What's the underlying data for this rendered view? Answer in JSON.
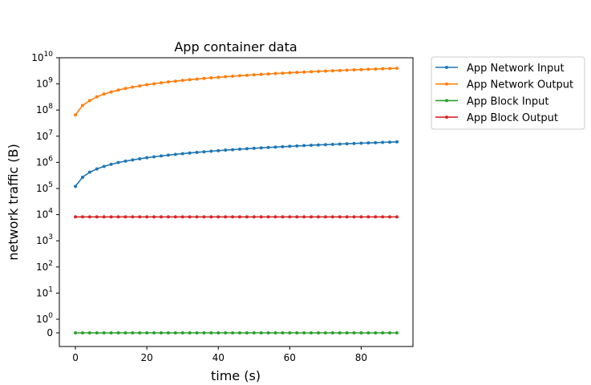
{
  "chart_data": {
    "type": "line",
    "title": "App container data",
    "xlabel": "time (s)",
    "ylabel": "network traffic (B)",
    "xlim": [
      -4.5,
      94.5
    ],
    "x_ticks": [
      0,
      20,
      40,
      60,
      80
    ],
    "y_scale": "symlog",
    "y_ticks": [
      {
        "value": 0,
        "base": "0",
        "exp": ""
      },
      {
        "value": 1,
        "base": "10",
        "exp": "0"
      },
      {
        "value": 10,
        "base": "10",
        "exp": "1"
      },
      {
        "value": 100,
        "base": "10",
        "exp": "2"
      },
      {
        "value": 1000,
        "base": "10",
        "exp": "3"
      },
      {
        "value": 10000,
        "base": "10",
        "exp": "4"
      },
      {
        "value": 100000,
        "base": "10",
        "exp": "5"
      },
      {
        "value": 1000000,
        "base": "10",
        "exp": "6"
      },
      {
        "value": 10000000,
        "base": "10",
        "exp": "7"
      },
      {
        "value": 100000000,
        "base": "10",
        "exp": "8"
      },
      {
        "value": 1000000000,
        "base": "10",
        "exp": "9"
      },
      {
        "value": 10000000000,
        "base": "10",
        "exp": "10"
      }
    ],
    "grid": false,
    "legend_position": "outside top-right",
    "x": [
      0,
      2,
      4,
      6,
      8,
      10,
      12,
      14,
      16,
      18,
      20,
      22,
      24,
      26,
      28,
      30,
      32,
      34,
      36,
      38,
      40,
      42,
      44,
      46,
      48,
      50,
      52,
      54,
      56,
      58,
      60,
      62,
      64,
      66,
      68,
      70,
      72,
      74,
      76,
      78,
      80,
      82,
      84,
      86,
      88,
      90
    ],
    "series": [
      {
        "name": "App Network Input",
        "color": "#1f77b4",
        "values": [
          120000,
          270000,
          420000,
          560000,
          700000,
          840000,
          980000,
          1110000,
          1240000,
          1370000,
          1500000,
          1630000,
          1760000,
          1890000,
          2020000,
          2150000,
          2280000,
          2410000,
          2540000,
          2670000,
          2800000,
          2930000,
          3060000,
          3190000,
          3320000,
          3450000,
          3580000,
          3710000,
          3840000,
          3970000,
          4100000,
          4230000,
          4360000,
          4490000,
          4620000,
          4750000,
          4880000,
          5010000,
          5140000,
          5270000,
          5400000,
          5530000,
          5660000,
          5790000,
          5920000,
          6050000
        ]
      },
      {
        "name": "App Network Output",
        "color": "#ff7f0e",
        "values": [
          65000000,
          150000000,
          230000000,
          320000000,
          410000000,
          490000000,
          580000000,
          670000000,
          750000000,
          840000000,
          930000000,
          1010000000,
          1100000000,
          1190000000,
          1270000000,
          1360000000,
          1450000000,
          1530000000,
          1620000000,
          1710000000,
          1790000000,
          1880000000,
          1970000000,
          2050000000,
          2140000000,
          2230000000,
          2310000000,
          2400000000,
          2490000000,
          2570000000,
          2660000000,
          2750000000,
          2830000000,
          2920000000,
          3010000000,
          3090000000,
          3180000000,
          3270000000,
          3350000000,
          3440000000,
          3530000000,
          3610000000,
          3700000000,
          3790000000,
          3870000000,
          3960000000
        ]
      },
      {
        "name": "App Block Input",
        "color": "#2ca02c",
        "values": [
          0,
          0,
          0,
          0,
          0,
          0,
          0,
          0,
          0,
          0,
          0,
          0,
          0,
          0,
          0,
          0,
          0,
          0,
          0,
          0,
          0,
          0,
          0,
          0,
          0,
          0,
          0,
          0,
          0,
          0,
          0,
          0,
          0,
          0,
          0,
          0,
          0,
          0,
          0,
          0,
          0,
          0,
          0,
          0,
          0,
          0
        ]
      },
      {
        "name": "App Block Output",
        "color": "#d62728",
        "values": [
          8192,
          8192,
          8192,
          8192,
          8192,
          8192,
          8192,
          8192,
          8192,
          8192,
          8192,
          8192,
          8192,
          8192,
          8192,
          8192,
          8192,
          8192,
          8192,
          8192,
          8192,
          8192,
          8192,
          8192,
          8192,
          8192,
          8192,
          8192,
          8192,
          8192,
          8192,
          8192,
          8192,
          8192,
          8192,
          8192,
          8192,
          8192,
          8192,
          8192,
          8192,
          8192,
          8192,
          8192,
          8192,
          8192
        ]
      }
    ]
  }
}
